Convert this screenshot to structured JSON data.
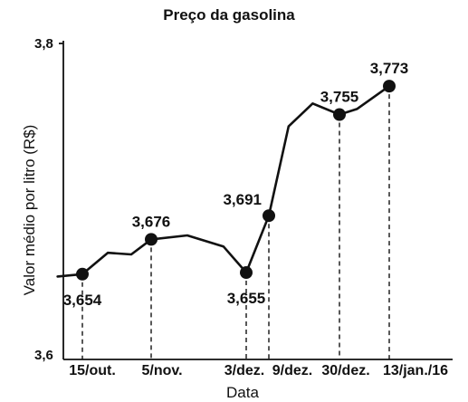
{
  "chart_data": {
    "type": "line",
    "title": "Preço da gasolina",
    "xlabel": "Data",
    "ylabel": "Valor médio por litro (R$)",
    "ylim": [
      3.6,
      3.8
    ],
    "yticks": [
      "3,6",
      "3,8"
    ],
    "categories": [
      "15/out.",
      "5/nov.",
      "3/dez.",
      "9/dez.",
      "30/dez.",
      "13/jan./16"
    ],
    "marked_points": [
      {
        "x": "15/out.",
        "y": 3.654,
        "label": "3,654",
        "label_pos": "below"
      },
      {
        "x": "5/nov.",
        "y": 3.676,
        "label": "3,676",
        "label_pos": "above"
      },
      {
        "x": "3/dez.",
        "y": 3.655,
        "label": "3,655",
        "label_pos": "below"
      },
      {
        "x": "9/dez.",
        "y": 3.691,
        "label": "3,691",
        "label_pos": "above-left"
      },
      {
        "x": "30/dez.",
        "y": 3.755,
        "label": "3,755",
        "label_pos": "above"
      },
      {
        "x": "13/jan./16",
        "y": 3.773,
        "label": "3,773",
        "label_pos": "above"
      }
    ],
    "line_path": [
      {
        "t": -0.36,
        "y": 3.6525
      },
      {
        "t": 0,
        "y": 3.654
      },
      {
        "t": 0.37,
        "y": 3.6675
      },
      {
        "t": 0.71,
        "y": 3.6665
      },
      {
        "t": 1,
        "y": 3.676
      },
      {
        "t": 1.38,
        "y": 3.6785
      },
      {
        "t": 1.76,
        "y": 3.6715
      },
      {
        "t": 2,
        "y": 3.655
      },
      {
        "t": 3,
        "y": 3.691
      },
      {
        "t": 3.28,
        "y": 3.7475
      },
      {
        "t": 3.62,
        "y": 3.762
      },
      {
        "t": 4,
        "y": 3.755
      },
      {
        "t": 4.35,
        "y": 3.7585
      },
      {
        "t": 5,
        "y": 3.773
      }
    ],
    "grid": false,
    "legend": "none",
    "guides": "dashed vertical drop lines from each marked point to the x-axis"
  }
}
